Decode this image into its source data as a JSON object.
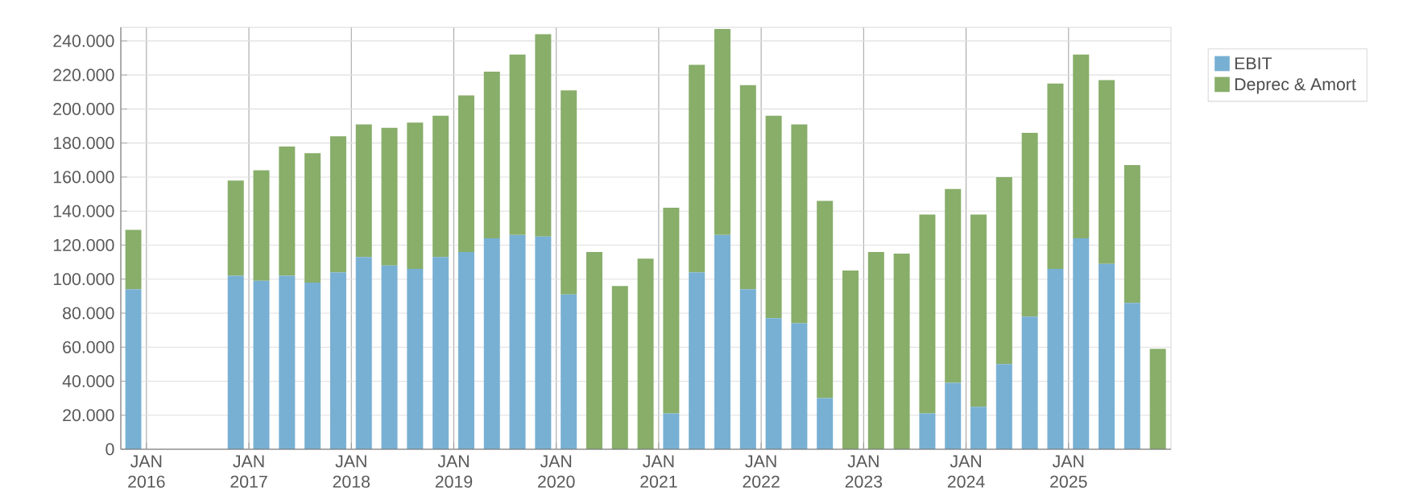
{
  "chart_data": {
    "type": "bar",
    "stacked": true,
    "x": [
      "2015-11-15",
      "2016-11-15",
      "2017-02-15",
      "2017-05-15",
      "2017-08-15",
      "2017-11-15",
      "2018-02-15",
      "2018-05-15",
      "2018-08-15",
      "2018-11-15",
      "2019-02-15",
      "2019-05-15",
      "2019-08-15",
      "2019-11-15",
      "2020-02-15",
      "2020-05-15",
      "2020-08-15",
      "2020-11-15",
      "2021-02-15",
      "2021-05-15",
      "2021-08-15",
      "2021-11-15",
      "2022-02-15",
      "2022-05-15",
      "2022-08-15",
      "2022-11-15",
      "2023-02-15",
      "2023-05-15",
      "2023-08-15",
      "2023-11-15",
      "2024-02-15",
      "2024-05-15",
      "2024-08-15",
      "2024-11-15",
      "2025-02-15",
      "2025-05-15",
      "2025-08-15",
      "2025-11-15"
    ],
    "series": [
      {
        "name": "EBIT",
        "color": "#78b0d3",
        "values": [
          94000,
          102000,
          99000,
          102000,
          98000,
          104000,
          113000,
          108000,
          106000,
          113000,
          116000,
          124000,
          126000,
          125000,
          91000,
          0,
          0,
          0,
          21000,
          104000,
          126000,
          94000,
          77000,
          74000,
          30000,
          0,
          0,
          0,
          21000,
          39000,
          25000,
          50000,
          78000,
          106000,
          124000,
          109000,
          86000,
          0
        ]
      },
      {
        "name": "Deprec & Amort",
        "color": "#88ae6a",
        "values": [
          35000,
          56000,
          65000,
          76000,
          76000,
          80000,
          78000,
          81000,
          86000,
          83000,
          92000,
          98000,
          106000,
          119000,
          120000,
          116000,
          96000,
          112000,
          121000,
          122000,
          121000,
          120000,
          119000,
          117000,
          116000,
          105000,
          116000,
          115000,
          117000,
          114000,
          113000,
          110000,
          108000,
          109000,
          108000,
          108000,
          81000,
          59000
        ]
      }
    ],
    "xlim": [
      "2015-10-01",
      "2026-01-01"
    ],
    "xticks": [
      {
        "value": "2016-01",
        "label": "JAN 2016"
      },
      {
        "value": "2017-01",
        "label": "JAN 2017"
      },
      {
        "value": "2018-01",
        "label": "JAN 2018"
      },
      {
        "value": "2019-01",
        "label": "JAN 2019"
      },
      {
        "value": "2020-01",
        "label": "JAN 2020"
      },
      {
        "value": "2021-01",
        "label": "JAN 2021"
      },
      {
        "value": "2022-01",
        "label": "JAN 2022"
      },
      {
        "value": "2023-01",
        "label": "JAN 2023"
      },
      {
        "value": "2024-01",
        "label": "JAN 2024"
      },
      {
        "value": "2025-01",
        "label": "JAN 2025"
      }
    ],
    "ylim": [
      0,
      248000
    ],
    "yticks": [
      0,
      {
        "value": 20000,
        "label": "20.000"
      },
      {
        "value": 40000,
        "label": "40.000"
      },
      {
        "value": 60000,
        "label": "60.000"
      },
      {
        "value": 80000,
        "label": "80.000"
      },
      {
        "value": 100000,
        "label": "100.000"
      },
      {
        "value": 120000,
        "label": "120.000"
      },
      {
        "value": 140000,
        "label": "140.000"
      },
      {
        "value": 160000,
        "label": "160.000"
      },
      {
        "value": 180000,
        "label": "180.000"
      },
      {
        "value": 200000,
        "label": "200.000"
      },
      {
        "value": 220000,
        "label": "220.000"
      },
      {
        "value": 240000,
        "label": "240.000"
      }
    ],
    "grid": true,
    "legend": "top right"
  }
}
